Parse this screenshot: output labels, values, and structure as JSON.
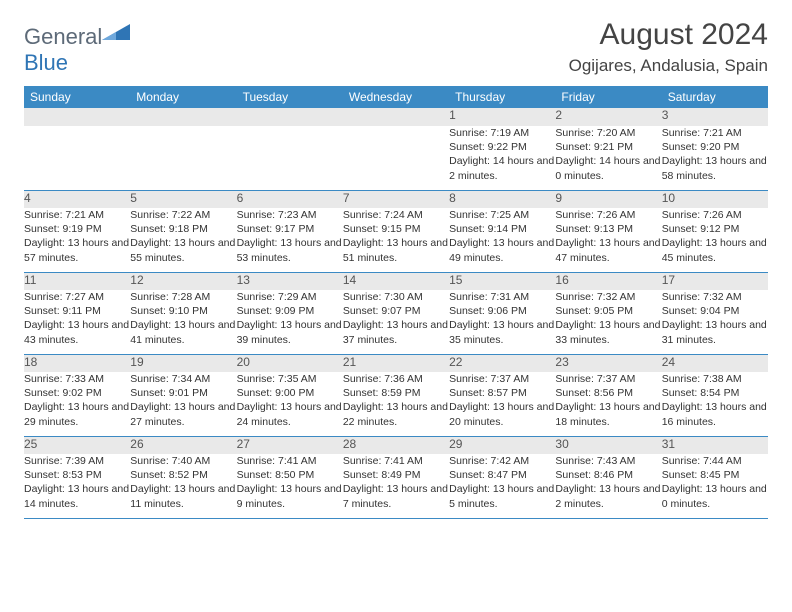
{
  "brand": {
    "word1": "General",
    "word2": "Blue"
  },
  "title": "August 2024",
  "location": "Ogijares, Andalusia, Spain",
  "colors": {
    "header_bg": "#3b8ac4",
    "header_text": "#ffffff",
    "daynum_bg": "#e9e9e9",
    "row_divider": "#3b8ac4",
    "body_text": "#333333",
    "logo_gray": "#5d6a78",
    "logo_blue": "#2f75b5"
  },
  "typography": {
    "month_title_pt": 30,
    "location_pt": 17,
    "weekday_pt": 12,
    "daynum_pt": 12,
    "cell_pt": 10.5
  },
  "weekdays": [
    "Sunday",
    "Monday",
    "Tuesday",
    "Wednesday",
    "Thursday",
    "Friday",
    "Saturday"
  ],
  "weeks": [
    [
      null,
      null,
      null,
      null,
      {
        "n": "1",
        "sunrise": "7:19 AM",
        "sunset": "9:22 PM",
        "daylight": "14 hours and 2 minutes."
      },
      {
        "n": "2",
        "sunrise": "7:20 AM",
        "sunset": "9:21 PM",
        "daylight": "14 hours and 0 minutes."
      },
      {
        "n": "3",
        "sunrise": "7:21 AM",
        "sunset": "9:20 PM",
        "daylight": "13 hours and 58 minutes."
      }
    ],
    [
      {
        "n": "4",
        "sunrise": "7:21 AM",
        "sunset": "9:19 PM",
        "daylight": "13 hours and 57 minutes."
      },
      {
        "n": "5",
        "sunrise": "7:22 AM",
        "sunset": "9:18 PM",
        "daylight": "13 hours and 55 minutes."
      },
      {
        "n": "6",
        "sunrise": "7:23 AM",
        "sunset": "9:17 PM",
        "daylight": "13 hours and 53 minutes."
      },
      {
        "n": "7",
        "sunrise": "7:24 AM",
        "sunset": "9:15 PM",
        "daylight": "13 hours and 51 minutes."
      },
      {
        "n": "8",
        "sunrise": "7:25 AM",
        "sunset": "9:14 PM",
        "daylight": "13 hours and 49 minutes."
      },
      {
        "n": "9",
        "sunrise": "7:26 AM",
        "sunset": "9:13 PM",
        "daylight": "13 hours and 47 minutes."
      },
      {
        "n": "10",
        "sunrise": "7:26 AM",
        "sunset": "9:12 PM",
        "daylight": "13 hours and 45 minutes."
      }
    ],
    [
      {
        "n": "11",
        "sunrise": "7:27 AM",
        "sunset": "9:11 PM",
        "daylight": "13 hours and 43 minutes."
      },
      {
        "n": "12",
        "sunrise": "7:28 AM",
        "sunset": "9:10 PM",
        "daylight": "13 hours and 41 minutes."
      },
      {
        "n": "13",
        "sunrise": "7:29 AM",
        "sunset": "9:09 PM",
        "daylight": "13 hours and 39 minutes."
      },
      {
        "n": "14",
        "sunrise": "7:30 AM",
        "sunset": "9:07 PM",
        "daylight": "13 hours and 37 minutes."
      },
      {
        "n": "15",
        "sunrise": "7:31 AM",
        "sunset": "9:06 PM",
        "daylight": "13 hours and 35 minutes."
      },
      {
        "n": "16",
        "sunrise": "7:32 AM",
        "sunset": "9:05 PM",
        "daylight": "13 hours and 33 minutes."
      },
      {
        "n": "17",
        "sunrise": "7:32 AM",
        "sunset": "9:04 PM",
        "daylight": "13 hours and 31 minutes."
      }
    ],
    [
      {
        "n": "18",
        "sunrise": "7:33 AM",
        "sunset": "9:02 PM",
        "daylight": "13 hours and 29 minutes."
      },
      {
        "n": "19",
        "sunrise": "7:34 AM",
        "sunset": "9:01 PM",
        "daylight": "13 hours and 27 minutes."
      },
      {
        "n": "20",
        "sunrise": "7:35 AM",
        "sunset": "9:00 PM",
        "daylight": "13 hours and 24 minutes."
      },
      {
        "n": "21",
        "sunrise": "7:36 AM",
        "sunset": "8:59 PM",
        "daylight": "13 hours and 22 minutes."
      },
      {
        "n": "22",
        "sunrise": "7:37 AM",
        "sunset": "8:57 PM",
        "daylight": "13 hours and 20 minutes."
      },
      {
        "n": "23",
        "sunrise": "7:37 AM",
        "sunset": "8:56 PM",
        "daylight": "13 hours and 18 minutes."
      },
      {
        "n": "24",
        "sunrise": "7:38 AM",
        "sunset": "8:54 PM",
        "daylight": "13 hours and 16 minutes."
      }
    ],
    [
      {
        "n": "25",
        "sunrise": "7:39 AM",
        "sunset": "8:53 PM",
        "daylight": "13 hours and 14 minutes."
      },
      {
        "n": "26",
        "sunrise": "7:40 AM",
        "sunset": "8:52 PM",
        "daylight": "13 hours and 11 minutes."
      },
      {
        "n": "27",
        "sunrise": "7:41 AM",
        "sunset": "8:50 PM",
        "daylight": "13 hours and 9 minutes."
      },
      {
        "n": "28",
        "sunrise": "7:41 AM",
        "sunset": "8:49 PM",
        "daylight": "13 hours and 7 minutes."
      },
      {
        "n": "29",
        "sunrise": "7:42 AM",
        "sunset": "8:47 PM",
        "daylight": "13 hours and 5 minutes."
      },
      {
        "n": "30",
        "sunrise": "7:43 AM",
        "sunset": "8:46 PM",
        "daylight": "13 hours and 2 minutes."
      },
      {
        "n": "31",
        "sunrise": "7:44 AM",
        "sunset": "8:45 PM",
        "daylight": "13 hours and 0 minutes."
      }
    ]
  ],
  "labels": {
    "sunrise": "Sunrise: ",
    "sunset": "Sunset: ",
    "daylight": "Daylight: "
  }
}
